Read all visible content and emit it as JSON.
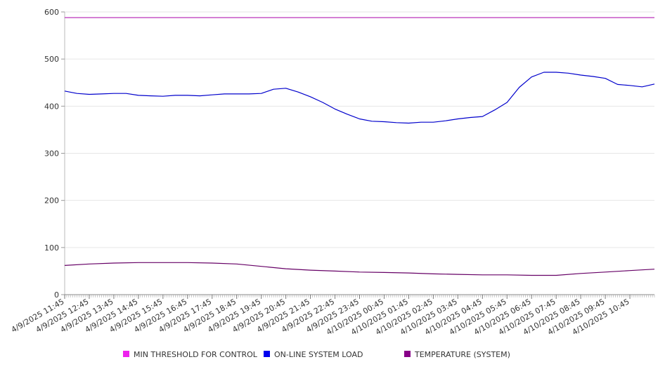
{
  "chart_data": {
    "type": "line",
    "title": "",
    "xlabel": "",
    "ylabel": "",
    "ylim": [
      0,
      600
    ],
    "y_ticks": [
      0,
      100,
      200,
      300,
      400,
      500,
      600
    ],
    "grid": "horizontal",
    "legend_position": "bottom",
    "x_tick_labels": [
      "4/9/2025 11:45",
      "4/9/2025 12:45",
      "4/9/2025 13:45",
      "4/9/2025 14:45",
      "4/9/2025 15:45",
      "4/9/2025 16:45",
      "4/9/2025 17:45",
      "4/9/2025 18:45",
      "4/9/2025 19:45",
      "4/9/2025 20:45",
      "4/9/2025 21:45",
      "4/9/2025 22:45",
      "4/9/2025 23:45",
      "4/10/2025 00:45",
      "4/10/2025 01:45",
      "4/10/2025 02:45",
      "4/10/2025 03:45",
      "4/10/2025 04:45",
      "4/10/2025 05:45",
      "4/10/2025 06:45",
      "4/10/2025 07:45",
      "4/10/2025 08:45",
      "4/10/2025 09:45",
      "4/10/2025 10:45"
    ],
    "x_end": "4/10/2025 11:45",
    "series": [
      {
        "name": "MIN THRESHOLD FOR CONTROL",
        "color": "#bb33bb",
        "legend_color": "#ee22ee",
        "x": [
          "4/9/2025 11:45",
          "4/10/2025 11:45"
        ],
        "values": [
          588,
          588
        ]
      },
      {
        "name": "ON-LINE SYSTEM LOAD",
        "color": "#0000cc",
        "legend_color": "#0000ee",
        "x": [
          "4/9/2025 11:45",
          "4/9/2025 12:15",
          "4/9/2025 12:45",
          "4/9/2025 13:15",
          "4/9/2025 13:45",
          "4/9/2025 14:15",
          "4/9/2025 14:45",
          "4/9/2025 15:15",
          "4/9/2025 15:45",
          "4/9/2025 16:15",
          "4/9/2025 16:45",
          "4/9/2025 17:15",
          "4/9/2025 17:45",
          "4/9/2025 18:15",
          "4/9/2025 18:45",
          "4/9/2025 19:15",
          "4/9/2025 19:45",
          "4/9/2025 20:15",
          "4/9/2025 20:45",
          "4/9/2025 21:15",
          "4/9/2025 21:45",
          "4/9/2025 22:15",
          "4/9/2025 22:45",
          "4/9/2025 23:15",
          "4/9/2025 23:45",
          "4/10/2025 00:15",
          "4/10/2025 00:45",
          "4/10/2025 01:15",
          "4/10/2025 01:45",
          "4/10/2025 02:15",
          "4/10/2025 02:45",
          "4/10/2025 03:15",
          "4/10/2025 03:45",
          "4/10/2025 04:15",
          "4/10/2025 04:45",
          "4/10/2025 05:15",
          "4/10/2025 05:45",
          "4/10/2025 06:15",
          "4/10/2025 06:45",
          "4/10/2025 07:15",
          "4/10/2025 07:45",
          "4/10/2025 08:15",
          "4/10/2025 08:45",
          "4/10/2025 09:15",
          "4/10/2025 09:45",
          "4/10/2025 10:15",
          "4/10/2025 10:45",
          "4/10/2025 11:15",
          "4/10/2025 11:45"
        ],
        "values": [
          432,
          427,
          425,
          426,
          427,
          427,
          423,
          422,
          421,
          423,
          423,
          422,
          424,
          426,
          426,
          426,
          427,
          436,
          438,
          430,
          420,
          408,
          394,
          383,
          373,
          368,
          367,
          365,
          364,
          366,
          366,
          369,
          373,
          376,
          378,
          392,
          408,
          440,
          462,
          472,
          472,
          470,
          466,
          463,
          459,
          446,
          444,
          441,
          447
        ]
      },
      {
        "name": "TEMPERATURE (SYSTEM)",
        "color": "#660066",
        "legend_color": "#880088",
        "x": [
          "4/9/2025 11:45",
          "4/9/2025 12:45",
          "4/9/2025 13:45",
          "4/9/2025 14:45",
          "4/9/2025 15:45",
          "4/9/2025 16:45",
          "4/9/2025 17:45",
          "4/9/2025 18:45",
          "4/9/2025 19:45",
          "4/9/2025 20:45",
          "4/9/2025 21:45",
          "4/9/2025 22:45",
          "4/9/2025 23:45",
          "4/10/2025 00:45",
          "4/10/2025 01:45",
          "4/10/2025 02:45",
          "4/10/2025 03:45",
          "4/10/2025 04:45",
          "4/10/2025 05:45",
          "4/10/2025 06:45",
          "4/10/2025 07:45",
          "4/10/2025 08:45",
          "4/10/2025 09:45",
          "4/10/2025 10:45",
          "4/10/2025 11:45"
        ],
        "values": [
          62,
          65,
          67,
          68,
          68,
          68,
          67,
          65,
          60,
          55,
          52,
          50,
          48,
          47,
          46,
          44,
          43,
          42,
          42,
          41,
          41,
          45,
          48,
          51,
          54
        ]
      }
    ]
  }
}
